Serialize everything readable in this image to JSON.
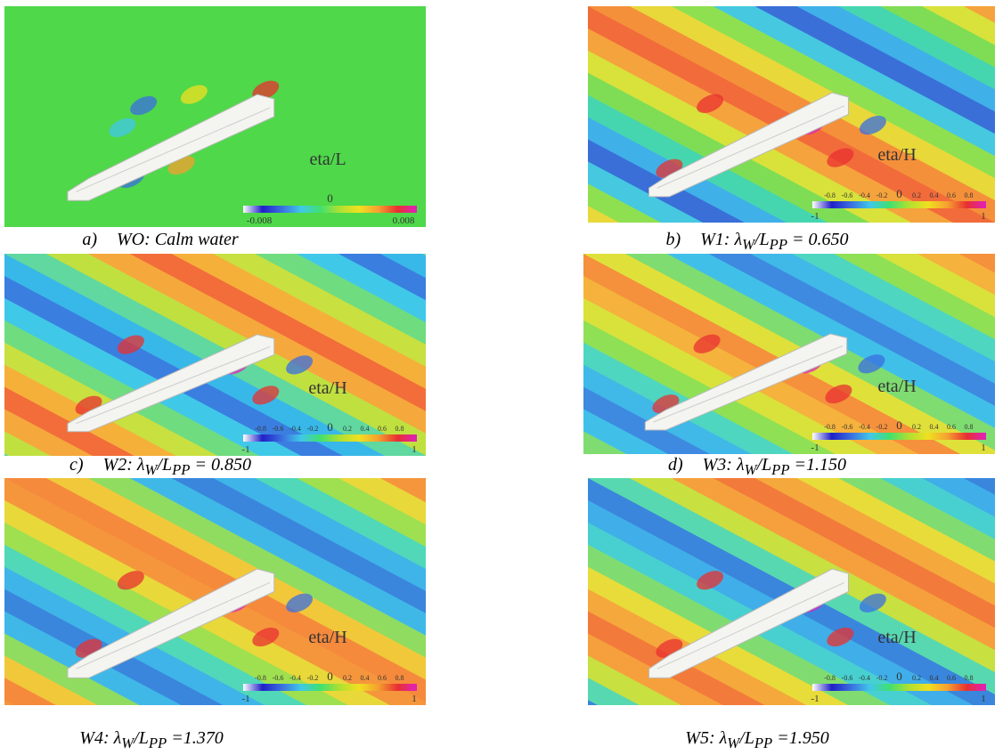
{
  "panels": [
    {
      "cbar": {
        "title": "eta/L",
        "lim": [
          -0.008,
          0.008
        ],
        "ticks": [
          0
        ]
      },
      "caption": {
        "prefix": "a)",
        "text": "WO: Calm water"
      }
    },
    {
      "cbar": {
        "title": "eta/H",
        "lim": [
          -1,
          1
        ],
        "ticks": [
          -0.8,
          -0.6,
          -0.4,
          -0.2,
          0,
          0.2,
          0.4,
          0.6,
          0.8
        ]
      },
      "caption": {
        "prefix": "b)",
        "text": "W1: λ",
        "sub1": "W",
        "mid": "/L",
        "sub2": "PP",
        "value": " = 0.650"
      }
    },
    {
      "cbar": {
        "title": "eta/H",
        "lim": [
          -1,
          1
        ],
        "ticks": [
          -0.8,
          -0.6,
          -0.4,
          -0.2,
          0,
          0.2,
          0.4,
          0.6,
          0.8
        ]
      },
      "caption": {
        "prefix": "c)",
        "text": "W2: λ",
        "sub1": "W",
        "mid": "/L",
        "sub2": "PP",
        "value": " = 0.850"
      }
    },
    {
      "cbar": {
        "title": "eta/H",
        "lim": [
          -1,
          1
        ],
        "ticks": [
          -0.8,
          -0.6,
          -0.4,
          -0.2,
          0,
          0.2,
          0.4,
          0.6,
          0.8
        ]
      },
      "caption": {
        "prefix": "d)",
        "text": "W3: λ",
        "sub1": "W",
        "mid": "/L",
        "sub2": "PP",
        "value": " =1.150"
      }
    },
    {
      "cbar": {
        "title": "eta/H",
        "lim": [
          -1,
          1
        ],
        "ticks": [
          -0.8,
          -0.6,
          -0.4,
          -0.2,
          0,
          0.2,
          0.4,
          0.6,
          0.8
        ]
      },
      "caption": {
        "text": "W4: λ",
        "sub1": "W",
        "mid": "/L",
        "sub2": "PP",
        "value": " =1.370"
      }
    },
    {
      "cbar": {
        "title": "eta/H",
        "lim": [
          -1,
          1
        ],
        "ticks": [
          -0.8,
          -0.6,
          -0.4,
          -0.2,
          0,
          0.2,
          0.4,
          0.6,
          0.8
        ]
      },
      "caption": {
        "text": "W5: λ",
        "sub1": "W",
        "mid": "/L",
        "sub2": "PP",
        "value": " =1.950"
      }
    }
  ]
}
